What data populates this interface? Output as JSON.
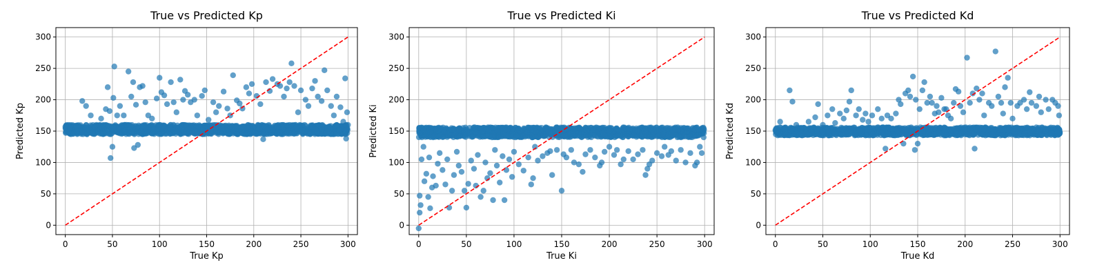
{
  "chart_data": [
    {
      "type": "scatter",
      "title": "True vs Predicted Kp",
      "xlabel": "True Kp",
      "ylabel": "Predicted Kp",
      "xlim": [
        -10,
        310
      ],
      "ylim": [
        -15,
        315
      ],
      "xticks": [
        0,
        50,
        100,
        150,
        200,
        250,
        300
      ],
      "yticks": [
        0,
        50,
        100,
        150,
        200,
        250,
        300
      ],
      "grid": true,
      "point_color": "#1f77b4",
      "reference_line": {
        "x": [
          0,
          300
        ],
        "y": [
          0,
          300
        ],
        "color": "#ff0000",
        "style": "dashed"
      },
      "dense_band": {
        "x_range": [
          0,
          300
        ],
        "y_range": [
          145,
          160
        ]
      },
      "points": [
        [
          5,
          155
        ],
        [
          12,
          150
        ],
        [
          18,
          198
        ],
        [
          22,
          190
        ],
        [
          27,
          175
        ],
        [
          33,
          160
        ],
        [
          38,
          170
        ],
        [
          43,
          185
        ],
        [
          45,
          220
        ],
        [
          47,
          182
        ],
        [
          48,
          107
        ],
        [
          50,
          125
        ],
        [
          51,
          203
        ],
        [
          52,
          253
        ],
        [
          55,
          175
        ],
        [
          58,
          190
        ],
        [
          62,
          175
        ],
        [
          65,
          160
        ],
        [
          67,
          245
        ],
        [
          70,
          205
        ],
        [
          72,
          228
        ],
        [
          73,
          123
        ],
        [
          75,
          192
        ],
        [
          77,
          128
        ],
        [
          79,
          220
        ],
        [
          82,
          222
        ],
        [
          85,
          196
        ],
        [
          88,
          175
        ],
        [
          92,
          170
        ],
        [
          97,
          202
        ],
        [
          100,
          235
        ],
        [
          102,
          212
        ],
        [
          105,
          207
        ],
        [
          108,
          193
        ],
        [
          112,
          228
        ],
        [
          115,
          196
        ],
        [
          118,
          180
        ],
        [
          122,
          232
        ],
        [
          125,
          200
        ],
        [
          127,
          214
        ],
        [
          130,
          208
        ],
        [
          133,
          196
        ],
        [
          137,
          200
        ],
        [
          140,
          175
        ],
        [
          145,
          206
        ],
        [
          148,
          215
        ],
        [
          152,
          168
        ],
        [
          157,
          196
        ],
        [
          160,
          180
        ],
        [
          163,
          190
        ],
        [
          168,
          213
        ],
        [
          172,
          186
        ],
        [
          175,
          175
        ],
        [
          178,
          239
        ],
        [
          182,
          199
        ],
        [
          185,
          194
        ],
        [
          188,
          186
        ],
        [
          192,
          220
        ],
        [
          195,
          210
        ],
        [
          198,
          225
        ],
        [
          203,
          206
        ],
        [
          207,
          193
        ],
        [
          210,
          137
        ],
        [
          213,
          228
        ],
        [
          217,
          214
        ],
        [
          220,
          233
        ],
        [
          225,
          225
        ],
        [
          228,
          222
        ],
        [
          232,
          205
        ],
        [
          235,
          218
        ],
        [
          238,
          228
        ],
        [
          240,
          258
        ],
        [
          243,
          222
        ],
        [
          247,
          180
        ],
        [
          250,
          215
        ],
        [
          255,
          200
        ],
        [
          258,
          190
        ],
        [
          262,
          218
        ],
        [
          265,
          230
        ],
        [
          268,
          205
        ],
        [
          272,
          198
        ],
        [
          275,
          247
        ],
        [
          278,
          215
        ],
        [
          282,
          190
        ],
        [
          285,
          175
        ],
        [
          288,
          205
        ],
        [
          292,
          188
        ],
        [
          295,
          165
        ],
        [
          297,
          234
        ],
        [
          298,
          138
        ],
        [
          299,
          180
        ],
        [
          300,
          160
        ]
      ]
    },
    {
      "type": "scatter",
      "title": "True vs Predicted Ki",
      "xlabel": "True Ki",
      "ylabel": "Predicted Ki",
      "xlim": [
        -10,
        310
      ],
      "ylim": [
        -15,
        315
      ],
      "xticks": [
        0,
        50,
        100,
        150,
        200,
        250,
        300
      ],
      "yticks": [
        0,
        50,
        100,
        150,
        200,
        250,
        300
      ],
      "grid": true,
      "point_color": "#1f77b4",
      "reference_line": {
        "x": [
          0,
          300
        ],
        "y": [
          0,
          300
        ],
        "color": "#ff0000",
        "style": "dashed"
      },
      "dense_band": {
        "x_range": [
          0,
          300
        ],
        "y_range": [
          140,
          156
        ]
      },
      "points": [
        [
          0,
          -5
        ],
        [
          1,
          20
        ],
        [
          1,
          47
        ],
        [
          2,
          32
        ],
        [
          3,
          105
        ],
        [
          5,
          125
        ],
        [
          6,
          70
        ],
        [
          8,
          82
        ],
        [
          10,
          45
        ],
        [
          11,
          108
        ],
        [
          12,
          27
        ],
        [
          14,
          60
        ],
        [
          15,
          78
        ],
        [
          18,
          63
        ],
        [
          20,
          98
        ],
        [
          22,
          115
        ],
        [
          25,
          88
        ],
        [
          28,
          65
        ],
        [
          30,
          105
        ],
        [
          32,
          28
        ],
        [
          35,
          55
        ],
        [
          37,
          80
        ],
        [
          40,
          117
        ],
        [
          42,
          95
        ],
        [
          45,
          85
        ],
        [
          48,
          55
        ],
        [
          50,
          28
        ],
        [
          52,
          66
        ],
        [
          55,
          103
        ],
        [
          58,
          90
        ],
        [
          60,
          63
        ],
        [
          62,
          112
        ],
        [
          65,
          45
        ],
        [
          68,
          55
        ],
        [
          70,
          100
        ],
        [
          72,
          75
        ],
        [
          75,
          83
        ],
        [
          78,
          40
        ],
        [
          80,
          120
        ],
        [
          82,
          95
        ],
        [
          85,
          68
        ],
        [
          88,
          110
        ],
        [
          90,
          40
        ],
        [
          92,
          88
        ],
        [
          95,
          105
        ],
        [
          98,
          77
        ],
        [
          100,
          117
        ],
        [
          105,
          97
        ],
        [
          110,
          87
        ],
        [
          115,
          108
        ],
        [
          118,
          65
        ],
        [
          120,
          75
        ],
        [
          122,
          125
        ],
        [
          125,
          103
        ],
        [
          130,
          110
        ],
        [
          135,
          115
        ],
        [
          138,
          118
        ],
        [
          140,
          80
        ],
        [
          145,
          120
        ],
        [
          150,
          55
        ],
        [
          152,
          113
        ],
        [
          155,
          108
        ],
        [
          160,
          120
        ],
        [
          163,
          100
        ],
        [
          168,
          97
        ],
        [
          172,
          85
        ],
        [
          175,
          113
        ],
        [
          180,
          120
        ],
        [
          185,
          108
        ],
        [
          190,
          95
        ],
        [
          192,
          100
        ],
        [
          195,
          117
        ],
        [
          200,
          125
        ],
        [
          205,
          112
        ],
        [
          208,
          120
        ],
        [
          212,
          97
        ],
        [
          215,
          105
        ],
        [
          220,
          118
        ],
        [
          225,
          105
        ],
        [
          230,
          113
        ],
        [
          235,
          120
        ],
        [
          238,
          80
        ],
        [
          240,
          90
        ],
        [
          242,
          97
        ],
        [
          245,
          103
        ],
        [
          250,
          115
        ],
        [
          255,
          110
        ],
        [
          258,
          125
        ],
        [
          262,
          112
        ],
        [
          265,
          118
        ],
        [
          270,
          103
        ],
        [
          275,
          120
        ],
        [
          280,
          100
        ],
        [
          285,
          115
        ],
        [
          290,
          95
        ],
        [
          292,
          100
        ],
        [
          295,
          125
        ],
        [
          297,
          115
        ],
        [
          299,
          140
        ]
      ]
    },
    {
      "type": "scatter",
      "title": "True vs Predicted Kd",
      "xlabel": "True Kd",
      "ylabel": "Predicted Kd",
      "xlim": [
        -10,
        310
      ],
      "ylim": [
        -15,
        315
      ],
      "xticks": [
        0,
        50,
        100,
        150,
        200,
        250,
        300
      ],
      "yticks": [
        0,
        50,
        100,
        150,
        200,
        250,
        300
      ],
      "grid": true,
      "point_color": "#1f77b4",
      "reference_line": {
        "x": [
          0,
          300
        ],
        "y": [
          0,
          300
        ],
        "color": "#ff0000",
        "style": "dashed"
      },
      "dense_band": {
        "x_range": [
          0,
          300
        ],
        "y_range": [
          143,
          156
        ]
      },
      "points": [
        [
          5,
          165
        ],
        [
          15,
          215
        ],
        [
          18,
          197
        ],
        [
          22,
          160
        ],
        [
          28,
          155
        ],
        [
          35,
          165
        ],
        [
          42,
          172
        ],
        [
          45,
          193
        ],
        [
          50,
          160
        ],
        [
          55,
          175
        ],
        [
          60,
          185
        ],
        [
          63,
          163
        ],
        [
          68,
          178
        ],
        [
          72,
          170
        ],
        [
          75,
          183
        ],
        [
          78,
          197
        ],
        [
          80,
          215
        ],
        [
          85,
          175
        ],
        [
          88,
          185
        ],
        [
          92,
          168
        ],
        [
          95,
          178
        ],
        [
          98,
          165
        ],
        [
          102,
          175
        ],
        [
          108,
          185
        ],
        [
          112,
          170
        ],
        [
          116,
          122
        ],
        [
          118,
          175
        ],
        [
          122,
          170
        ],
        [
          127,
          178
        ],
        [
          130,
          200
        ],
        [
          132,
          193
        ],
        [
          135,
          130
        ],
        [
          137,
          210
        ],
        [
          140,
          215
        ],
        [
          142,
          205
        ],
        [
          145,
          237
        ],
        [
          147,
          120
        ],
        [
          148,
          200
        ],
        [
          150,
          130
        ],
        [
          152,
          185
        ],
        [
          155,
          215
        ],
        [
          157,
          228
        ],
        [
          160,
          195
        ],
        [
          163,
          205
        ],
        [
          165,
          195
        ],
        [
          168,
          178
        ],
        [
          170,
          190
        ],
        [
          172,
          180
        ],
        [
          175,
          203
        ],
        [
          178,
          185
        ],
        [
          180,
          185
        ],
        [
          182,
          175
        ],
        [
          185,
          170
        ],
        [
          188,
          195
        ],
        [
          190,
          217
        ],
        [
          193,
          213
        ],
        [
          195,
          190
        ],
        [
          198,
          180
        ],
        [
          202,
          267
        ],
        [
          205,
          195
        ],
        [
          208,
          210
        ],
        [
          210,
          122
        ],
        [
          212,
          218
        ],
        [
          215,
          200
        ],
        [
          218,
          210
        ],
        [
          220,
          175
        ],
        [
          225,
          195
        ],
        [
          228,
          190
        ],
        [
          232,
          277
        ],
        [
          235,
          205
        ],
        [
          238,
          195
        ],
        [
          240,
          178
        ],
        [
          242,
          220
        ],
        [
          245,
          235
        ],
        [
          248,
          195
        ],
        [
          250,
          170
        ],
        [
          255,
          190
        ],
        [
          258,
          195
        ],
        [
          262,
          200
        ],
        [
          265,
          185
        ],
        [
          268,
          212
        ],
        [
          270,
          195
        ],
        [
          275,
          190
        ],
        [
          278,
          205
        ],
        [
          280,
          180
        ],
        [
          285,
          200
        ],
        [
          288,
          185
        ],
        [
          292,
          200
        ],
        [
          295,
          195
        ],
        [
          298,
          190
        ],
        [
          299,
          175
        ]
      ]
    }
  ]
}
